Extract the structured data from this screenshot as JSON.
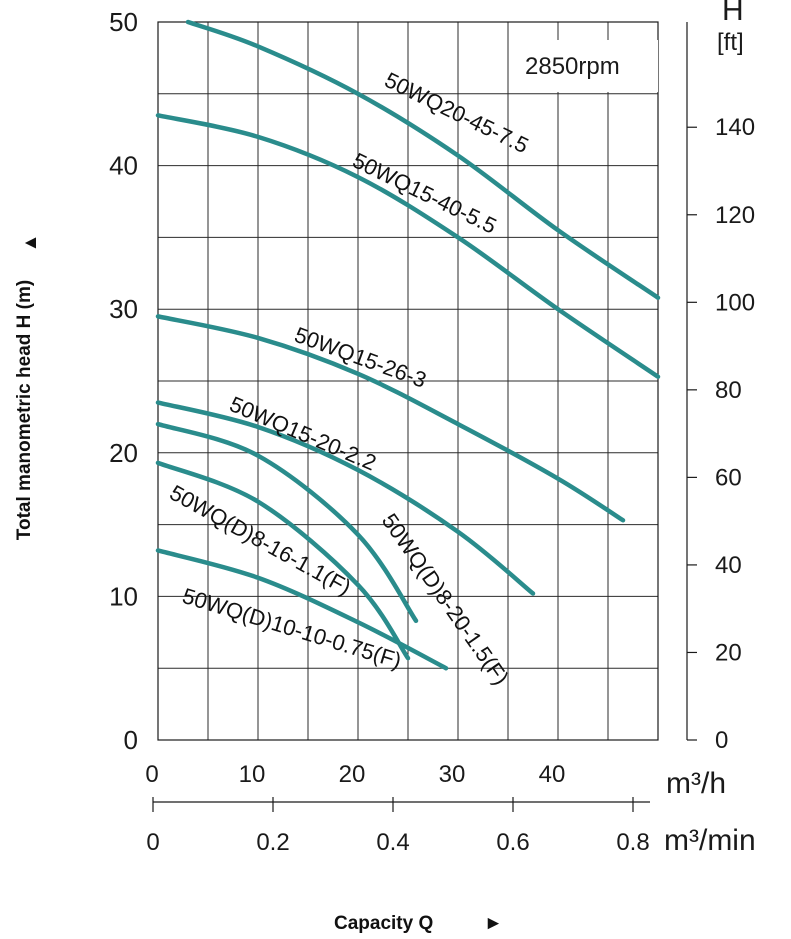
{
  "chart_data": {
    "type": "line",
    "title": "",
    "speed_label": "2850rpm",
    "ylabel": "Total manometric head H (m)",
    "ylabel_arrow": "▲",
    "xlabel": "Capacity Q",
    "xlabel_arrow": "►",
    "ylim": [
      0,
      50
    ],
    "xlim": [
      0,
      50
    ],
    "y_ticks": [
      "0",
      "10",
      "20",
      "30",
      "40",
      "50"
    ],
    "x_ticks_m3h": [
      "0",
      "10",
      "20",
      "30",
      "40"
    ],
    "x_unit_m3h": "m³/h",
    "x_ticks_m3min": [
      "0",
      "0.2",
      "0.4",
      "0.6",
      "0.8"
    ],
    "x_unit_m3min": "m³/min",
    "y2_unit_top": "H",
    "y2_unit_bottom": "[ft]",
    "y2_ticks": [
      "0",
      "20",
      "40",
      "60",
      "80",
      "100",
      "120",
      "140"
    ],
    "grid": true,
    "series": [
      {
        "name": "50WQ20-45-7.5",
        "x": [
          3,
          10,
          20,
          30,
          40,
          50
        ],
        "y": [
          50,
          48.3,
          45,
          40.7,
          35.5,
          30.8
        ]
      },
      {
        "name": "50WQ15-40-5.5",
        "x": [
          0,
          10,
          20,
          30,
          40,
          50
        ],
        "y": [
          43.5,
          42,
          39.2,
          35,
          30,
          25.3
        ]
      },
      {
        "name": "50WQ15-26-3",
        "x": [
          0,
          10,
          20,
          30,
          40,
          46.5
        ],
        "y": [
          29.5,
          28,
          25.5,
          22,
          18.2,
          15.3
        ]
      },
      {
        "name": "50WQ15-20-2.2",
        "x": [
          0,
          10,
          20,
          30,
          37.5
        ],
        "y": [
          23.5,
          21.8,
          18.8,
          14.5,
          10.2
        ]
      },
      {
        "name": "50WQ(D)8-20-1.5(F)",
        "x": [
          0,
          10,
          20,
          25.8
        ],
        "y": [
          22,
          19.8,
          14.3,
          8.3
        ]
      },
      {
        "name": "50WQ(D)8-16-1.1(F)",
        "x": [
          0,
          10,
          20,
          25
        ],
        "y": [
          19.3,
          16.6,
          10.8,
          5.7
        ]
      },
      {
        "name": "50WQ(D)10-10-0.75(F)",
        "x": [
          0,
          10,
          20,
          28.8
        ],
        "y": [
          13.2,
          11.3,
          8.2,
          5
        ]
      }
    ]
  }
}
